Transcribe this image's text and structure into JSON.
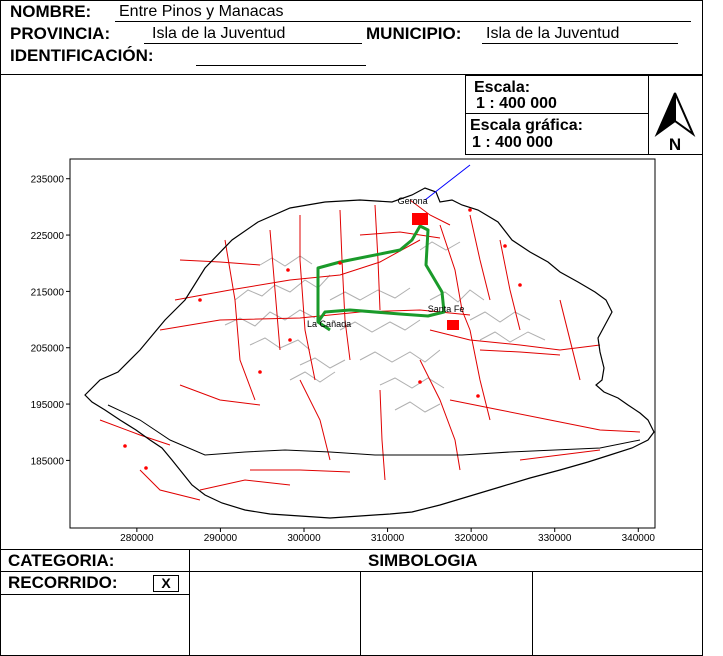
{
  "header": {
    "nombre_label": "NOMBRE:",
    "nombre_value": "Entre Pinos y Manacas",
    "provincia_label": "PROVINCIA:",
    "provincia_value": "Isla de la Juventud",
    "municipio_label": "MUNICIPIO:",
    "municipio_value": "Isla de la Juventud",
    "identificacion_label": "IDENTIFICACIÓN:",
    "identificacion_value": ""
  },
  "scale": {
    "escala_label": "Escala:",
    "escala_value": "1 : 400 000",
    "grafica_label": "Escala gráfica:",
    "grafica_value": "1 : 400 000"
  },
  "north_arrow": {
    "letter": "N",
    "icon": "north-arrow-icon"
  },
  "map": {
    "x_ticks": [
      "280000",
      "290000",
      "300000",
      "310000",
      "320000",
      "330000",
      "340000"
    ],
    "y_ticks": [
      "235000",
      "225000",
      "215000",
      "205000",
      "195000",
      "185000"
    ],
    "x_range": [
      272000,
      342000
    ],
    "y_range": [
      173000,
      238500
    ],
    "places": [
      {
        "name": "Gerona",
        "x": 313000,
        "y": 230500
      },
      {
        "name": "Santa Fe",
        "x": 317000,
        "y": 211300
      },
      {
        "name": "La Cañada",
        "x": 303000,
        "y": 208700
      }
    ],
    "colors": {
      "coast": "#000000",
      "roads": "#e00000",
      "route": "#1a9a2a",
      "contours": "#b0b0b0",
      "towns": "#ff0000",
      "pointer": "#0000ff"
    }
  },
  "footer": {
    "categoria_label": "CATEGORIA:",
    "simbologia_label": "SIMBOLOGIA",
    "recorrido_label": "RECORRIDO:",
    "recorrido_mark": "X"
  }
}
